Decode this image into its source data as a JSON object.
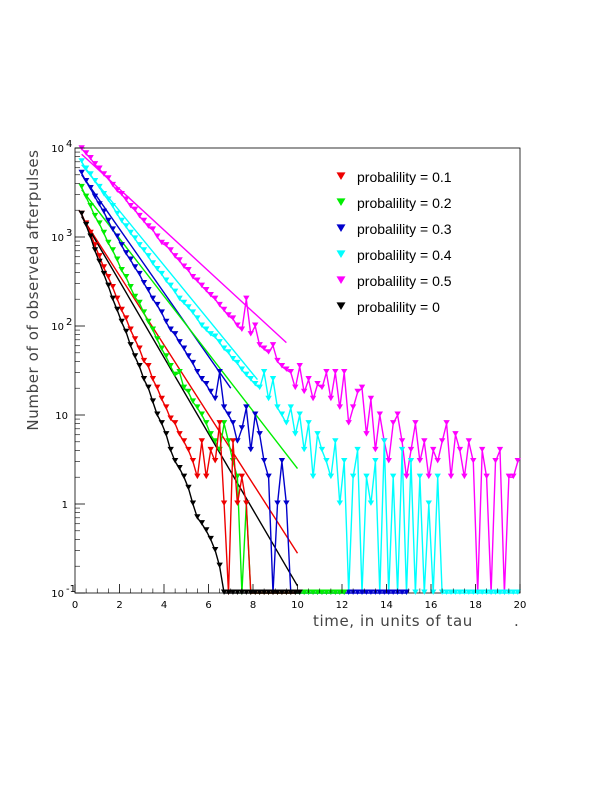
{
  "chart_data": {
    "type": "line",
    "xlabel": "time, in units of tau",
    "xlabel_suffix": ".",
    "ylabel": "Number of of observed afterpulses",
    "xlim": [
      0,
      20
    ],
    "ylim": [
      0.1,
      10000
    ],
    "yscale": "log",
    "grid": false,
    "legend_position": "top-right",
    "x_ticks": [
      0,
      2,
      4,
      6,
      8,
      10,
      12,
      14,
      16,
      18,
      20
    ],
    "x_tick_labels": [
      "0",
      "2",
      "4",
      "6",
      "8",
      "10",
      "12",
      "14",
      "16",
      "18",
      "20"
    ],
    "y_ticks": [
      {
        "value": 0.1,
        "base": "10",
        "exp": "-1"
      },
      {
        "value": 1,
        "base": "1",
        "exp": ""
      },
      {
        "value": 10,
        "base": "10",
        "exp": ""
      },
      {
        "value": 100,
        "base": "10",
        "exp": "2"
      },
      {
        "value": 1000,
        "base": "10",
        "exp": "3"
      },
      {
        "value": 10000,
        "base": "10",
        "exp": "4"
      }
    ],
    "series": [
      {
        "name": "probalility = 0.5",
        "color": "#ff00ff",
        "x": [
          0.3,
          0.5,
          0.7,
          0.9,
          1.1,
          1.3,
          1.5,
          1.7,
          1.9,
          2.1,
          2.3,
          2.5,
          2.7,
          2.9,
          3.1,
          3.3,
          3.5,
          3.7,
          3.9,
          4.1,
          4.3,
          4.5,
          4.7,
          4.9,
          5.1,
          5.3,
          5.5,
          5.7,
          5.9,
          6.1,
          6.3,
          6.5,
          6.7,
          6.9,
          7.1,
          7.3,
          7.5,
          7.7,
          7.9,
          8.1,
          8.3,
          8.5,
          8.7,
          8.9,
          9.1,
          9.3,
          9.5,
          9.7,
          9.9,
          10.1,
          10.3,
          10.5,
          10.7,
          10.9,
          11.1,
          11.3,
          11.5,
          11.7,
          11.9,
          12.1,
          12.3,
          12.5,
          12.7,
          12.9,
          13.1,
          13.3,
          13.5,
          13.7,
          13.9,
          14.1,
          14.3,
          14.5,
          14.7,
          14.9,
          15.1,
          15.3,
          15.5,
          15.7,
          15.9,
          16.1,
          16.3,
          16.5,
          16.7,
          16.9,
          17.1,
          17.3,
          17.5,
          17.7,
          17.9,
          18.1,
          18.3,
          18.5,
          18.7,
          18.9,
          19.1,
          19.3,
          19.5,
          19.7,
          19.9
        ],
        "y": [
          9800,
          8600,
          7600,
          6500,
          5800,
          5000,
          4500,
          3800,
          3300,
          3000,
          2600,
          2200,
          2000,
          1700,
          1500,
          1300,
          1200,
          1000,
          850,
          800,
          700,
          600,
          540,
          460,
          420,
          350,
          320,
          280,
          250,
          220,
          200,
          170,
          150,
          130,
          120,
          100,
          90,
          200,
          80,
          100,
          60,
          55,
          50,
          60,
          40,
          35,
          32,
          30,
          20,
          35,
          18,
          25,
          15,
          22,
          20,
          30,
          15,
          30,
          12,
          30,
          8,
          12,
          18,
          20,
          6,
          15,
          4,
          10,
          5,
          3,
          8,
          10,
          5,
          2,
          4,
          8,
          3,
          5,
          2,
          4,
          3,
          5,
          8,
          2,
          6,
          4,
          2,
          5,
          3,
          0.1,
          4,
          2,
          0.1,
          3,
          4,
          0.1,
          2,
          2,
          3
        ],
        "fit": {
          "x": [
            0.3,
            9.5
          ],
          "y": [
            8500,
            65
          ]
        }
      },
      {
        "name": "probalility = 0.4",
        "color": "#00ffff",
        "x": [
          0.3,
          0.5,
          0.7,
          0.9,
          1.1,
          1.3,
          1.5,
          1.7,
          1.9,
          2.1,
          2.3,
          2.5,
          2.7,
          2.9,
          3.1,
          3.3,
          3.5,
          3.7,
          3.9,
          4.1,
          4.3,
          4.5,
          4.7,
          4.9,
          5.1,
          5.3,
          5.5,
          5.7,
          5.9,
          6.1,
          6.3,
          6.5,
          6.7,
          6.9,
          7.1,
          7.3,
          7.5,
          7.7,
          7.9,
          8.1,
          8.3,
          8.5,
          8.7,
          8.9,
          9.1,
          9.3,
          9.5,
          9.7,
          9.9,
          10.1,
          10.3,
          10.5,
          10.7,
          10.9,
          11.1,
          11.3,
          11.5,
          11.7,
          11.9,
          12.1,
          12.3,
          12.5,
          12.7,
          12.9,
          13.1,
          13.3,
          13.5,
          13.7,
          13.9,
          14.1,
          14.3,
          14.5,
          14.7,
          14.9,
          15.1,
          15.3,
          15.5,
          15.7,
          15.9,
          16.1,
          16.3,
          16.5,
          16.7,
          16.9,
          17.1,
          17.3,
          17.5,
          17.7,
          17.9,
          18.1,
          18.3,
          18.5,
          18.7,
          18.9,
          19.1,
          19.3,
          19.5,
          19.7,
          19.9
        ],
        "y": [
          7000,
          5800,
          5000,
          4200,
          3600,
          3000,
          2600,
          2200,
          1800,
          1500,
          1300,
          1100,
          950,
          800,
          700,
          600,
          500,
          430,
          380,
          320,
          280,
          240,
          200,
          180,
          160,
          140,
          120,
          100,
          90,
          80,
          75,
          65,
          55,
          50,
          42,
          38,
          32,
          28,
          25,
          22,
          20,
          30,
          15,
          25,
          12,
          10,
          8,
          12,
          6,
          10,
          4,
          8,
          2,
          6,
          4,
          3,
          2,
          5,
          1,
          3,
          0.1,
          2,
          4,
          0.1,
          2,
          1,
          3,
          0.1,
          5,
          0.1,
          2,
          0.1,
          4,
          0.1,
          3,
          0.1,
          2,
          0.1,
          1,
          0.1,
          2,
          0.1,
          0.1,
          0.1,
          0.1,
          0.1,
          0.1,
          0.1,
          0.1,
          0.1,
          0.1,
          0.1,
          0.1,
          0.1,
          0.1,
          0.1,
          0.1,
          0.1,
          0.1
        ],
        "fit": {
          "x": [
            0.3,
            8.2
          ],
          "y": [
            6500,
            25
          ]
        }
      },
      {
        "name": "probalility = 0.3",
        "color": "#0000cc",
        "x": [
          0.3,
          0.5,
          0.7,
          0.9,
          1.1,
          1.3,
          1.5,
          1.7,
          1.9,
          2.1,
          2.3,
          2.5,
          2.7,
          2.9,
          3.1,
          3.3,
          3.5,
          3.7,
          3.9,
          4.1,
          4.3,
          4.5,
          4.7,
          4.9,
          5.1,
          5.3,
          5.5,
          5.7,
          5.9,
          6.1,
          6.3,
          6.5,
          6.7,
          6.9,
          7.1,
          7.3,
          7.5,
          7.7,
          7.9,
          8.1,
          8.3,
          8.5,
          8.7,
          8.9,
          9.1,
          9.3,
          9.5,
          9.7,
          9.9,
          10.1,
          10.3,
          10.5,
          10.7,
          10.9,
          11.1,
          11.3,
          11.5,
          11.7,
          11.9,
          12.1,
          12.3,
          12.5,
          12.7,
          12.9,
          13.1,
          13.3,
          13.5,
          13.7,
          13.9,
          14.1,
          14.3,
          14.5,
          14.7,
          14.9
        ],
        "y": [
          5200,
          4200,
          3500,
          2800,
          2300,
          1900,
          1500,
          1200,
          1000,
          800,
          650,
          550,
          450,
          380,
          300,
          250,
          200,
          170,
          140,
          110,
          90,
          80,
          65,
          55,
          45,
          38,
          30,
          25,
          22,
          18,
          15,
          30,
          12,
          10,
          8,
          5,
          7,
          12,
          4,
          10,
          6,
          3,
          2,
          0.1,
          1,
          3,
          1,
          0.1,
          0.1,
          0.1,
          0.1,
          0.1,
          0.1,
          0.1,
          0.1,
          0.1,
          0.1,
          0.1,
          0.1,
          0.1,
          0.1,
          0.1,
          0.1,
          0.1,
          0.1,
          0.1,
          0.1,
          0.1,
          0.1,
          0.1,
          0.1,
          0.1,
          0.1,
          0.1
        ],
        "fit": {
          "x": [
            0.3,
            7.0
          ],
          "y": [
            5000,
            20
          ]
        }
      },
      {
        "name": "probalility = 0.2",
        "color": "#00ee00",
        "x": [
          0.3,
          0.5,
          0.7,
          0.9,
          1.1,
          1.3,
          1.5,
          1.7,
          1.9,
          2.1,
          2.3,
          2.5,
          2.7,
          2.9,
          3.1,
          3.3,
          3.5,
          3.7,
          3.9,
          4.1,
          4.3,
          4.5,
          4.7,
          4.9,
          5.1,
          5.3,
          5.5,
          5.7,
          5.9,
          6.1,
          6.3,
          6.5,
          6.7,
          6.9,
          7.1,
          7.3,
          7.5,
          7.7,
          7.9,
          8.1,
          8.3,
          8.5,
          8.7,
          8.9,
          9.1,
          9.3,
          9.5,
          9.7,
          9.9,
          10.1,
          10.3,
          10.5,
          10.7,
          10.9,
          11.1,
          11.3,
          11.5,
          11.7,
          11.9,
          12.1
        ],
        "y": [
          3600,
          2800,
          2200,
          1700,
          1400,
          1100,
          850,
          700,
          550,
          420,
          350,
          270,
          210,
          180,
          140,
          110,
          90,
          70,
          55,
          45,
          35,
          28,
          30,
          20,
          18,
          14,
          12,
          10,
          8,
          6,
          5,
          4,
          8,
          5,
          3,
          2,
          0.1,
          1,
          0.1,
          0.1,
          0.1,
          0.1,
          0.1,
          0.1,
          0.1,
          0.1,
          0.1,
          0.1,
          0.1,
          0.1,
          0.1,
          0.1,
          0.1,
          0.1,
          0.1,
          0.1,
          0.1,
          0.1,
          0.1,
          0.1
        ],
        "fit": {
          "x": [
            0.3,
            10.0
          ],
          "y": [
            3400,
            2.5
          ]
        }
      },
      {
        "name": "probalility = 0.1",
        "color": "#ee0000",
        "x": [
          0.3,
          0.5,
          0.7,
          0.9,
          1.1,
          1.3,
          1.5,
          1.7,
          1.9,
          2.1,
          2.3,
          2.5,
          2.7,
          2.9,
          3.1,
          3.3,
          3.5,
          3.7,
          3.9,
          4.1,
          4.3,
          4.5,
          4.7,
          4.9,
          5.1,
          5.3,
          5.5,
          5.7,
          5.9,
          6.1,
          6.3,
          6.5,
          6.7,
          6.9,
          7.1,
          7.3,
          7.5,
          7.7,
          7.9,
          8.1,
          8.3,
          8.5,
          8.7,
          8.9,
          9.1,
          9.3,
          9.5,
          9.7,
          9.9
        ],
        "y": [
          1800,
          1400,
          1100,
          800,
          600,
          450,
          350,
          270,
          200,
          150,
          120,
          90,
          70,
          55,
          40,
          35,
          25,
          20,
          15,
          12,
          9,
          8,
          6,
          5,
          4,
          3,
          2,
          5,
          2,
          4,
          3,
          8,
          1,
          0.1,
          5,
          1,
          2,
          1,
          0.1,
          0.1,
          0.1,
          0.1,
          0.1,
          0.1,
          0.1,
          0.1,
          0.1,
          0.1,
          0.1
        ],
        "fit": {
          "x": [
            0.3,
            10.0
          ],
          "y": [
            1700,
            0.28
          ]
        }
      },
      {
        "name": "probalility = 0",
        "color": "#000000",
        "x": [
          0.3,
          0.5,
          0.7,
          0.9,
          1.1,
          1.3,
          1.5,
          1.7,
          1.9,
          2.1,
          2.3,
          2.5,
          2.7,
          2.9,
          3.1,
          3.3,
          3.5,
          3.7,
          3.9,
          4.1,
          4.3,
          4.5,
          4.7,
          4.9,
          5.1,
          5.3,
          5.5,
          5.7,
          5.9,
          6.1,
          6.3,
          6.5,
          6.7,
          6.9,
          7.1,
          7.3,
          7.5,
          7.7,
          7.9,
          8.1,
          8.3,
          8.5,
          8.7,
          8.9,
          9.1,
          9.3,
          9.5,
          9.7,
          9.9,
          10.1
        ],
        "y": [
          1800,
          1350,
          1000,
          700,
          520,
          380,
          280,
          200,
          150,
          110,
          85,
          60,
          45,
          35,
          25,
          20,
          14,
          10,
          8,
          6,
          4,
          3,
          2.5,
          2,
          1.5,
          1,
          0.7,
          0.6,
          0.5,
          0.4,
          0.3,
          0.2,
          0.1,
          0.1,
          0.1,
          0.1,
          0.1,
          0.1,
          0.1,
          0.1,
          0.1,
          0.1,
          0.1,
          0.1,
          0.1,
          0.1,
          0.1,
          0.1,
          0.1,
          0.1
        ],
        "fit": {
          "x": [
            0.3,
            10.0
          ],
          "y": [
            1700,
            0.12
          ]
        }
      }
    ]
  }
}
